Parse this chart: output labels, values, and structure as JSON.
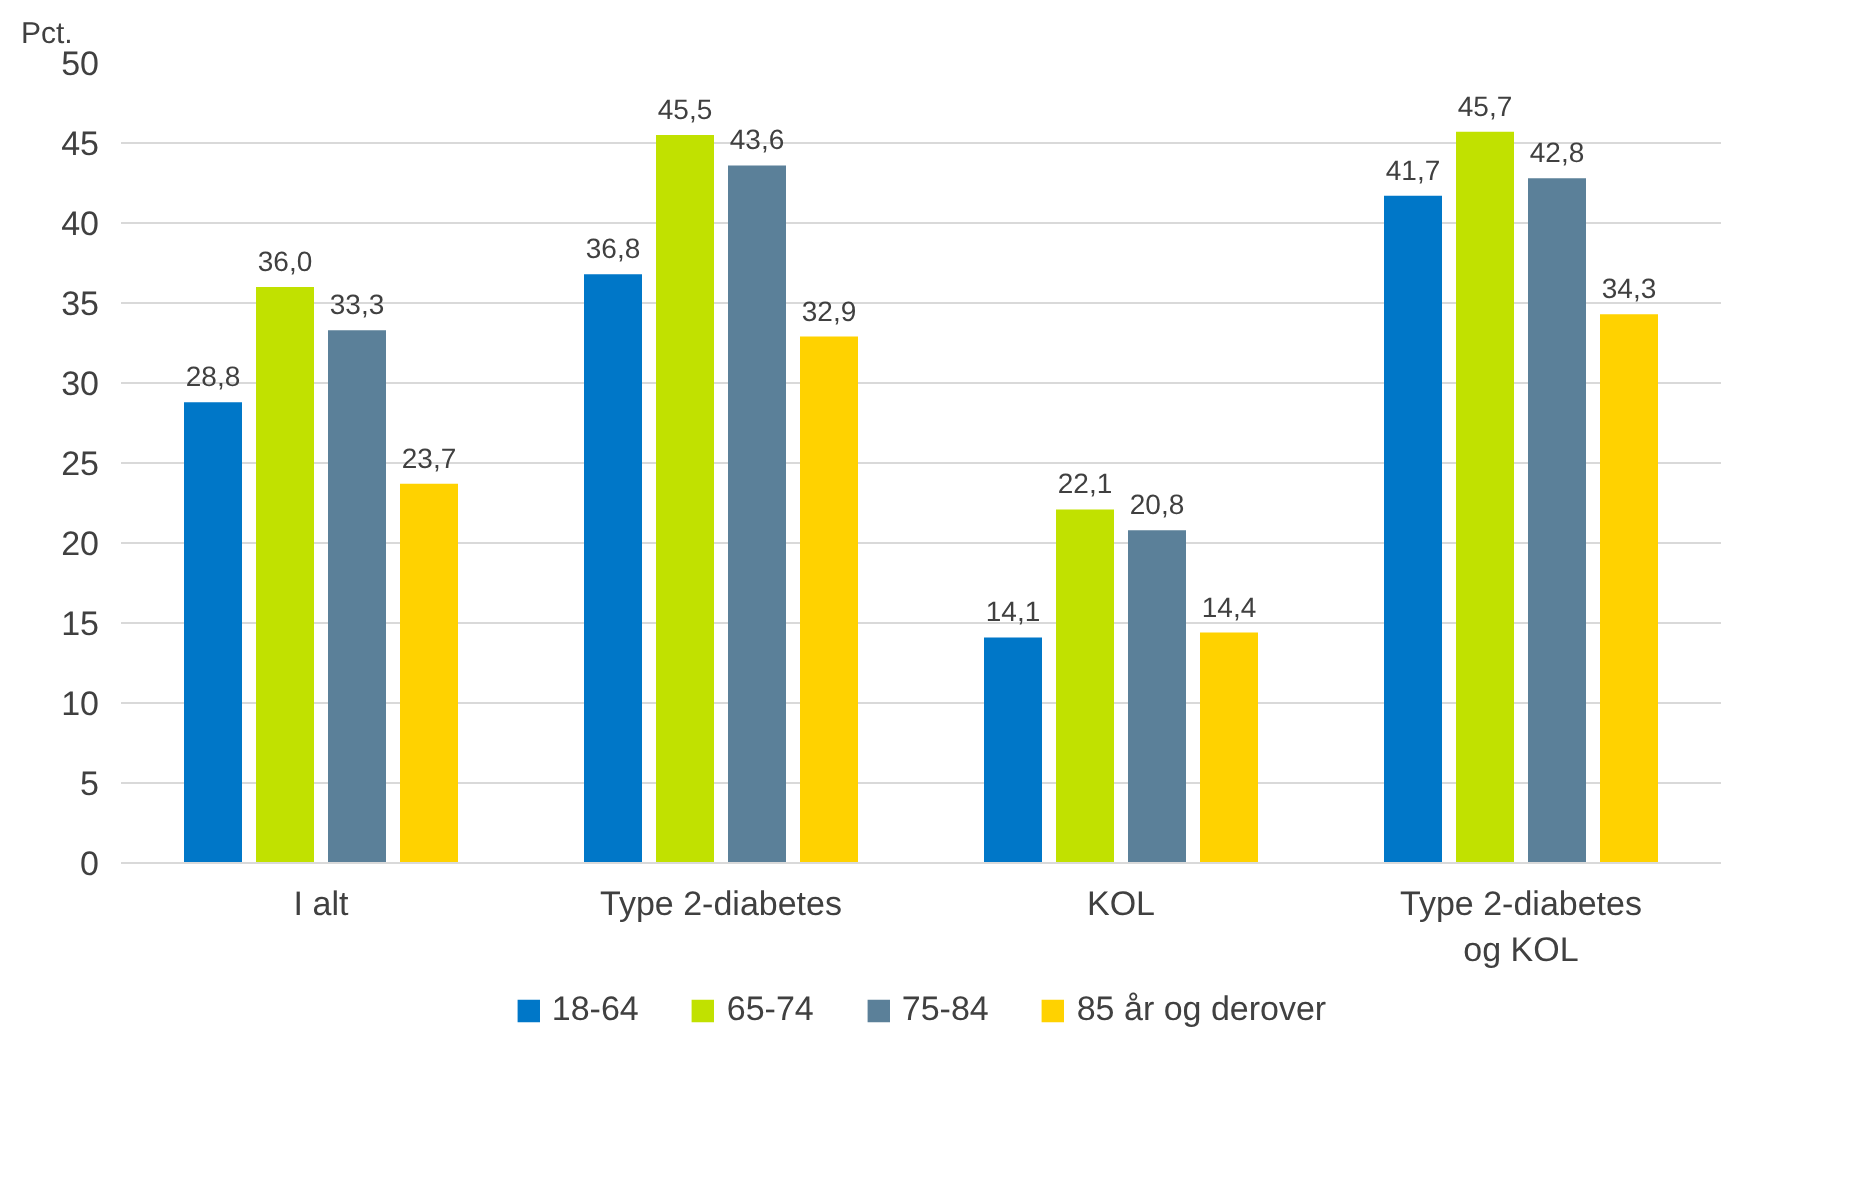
{
  "chart_data": {
    "type": "bar",
    "ylabel": "Pct.",
    "categories": [
      "I alt",
      "Type 2-diabetes",
      "KOL",
      "Type 2-diabetes og KOL"
    ],
    "series": [
      {
        "name": "18-64",
        "color": "#0077c8",
        "values": [
          28.8,
          36.8,
          14.1,
          41.7
        ],
        "value_labels": [
          "28,8",
          "36,8",
          "14,1",
          "41,7"
        ]
      },
      {
        "name": "65-74",
        "color": "#c1e100",
        "values": [
          36.0,
          45.5,
          22.1,
          45.7
        ],
        "value_labels": [
          "36,0",
          "45,5",
          "22,1",
          "45,7"
        ]
      },
      {
        "name": "75-84",
        "color": "#5b8099",
        "values": [
          33.3,
          43.6,
          20.8,
          42.8
        ],
        "value_labels": [
          "33,3",
          "43,6",
          "20,8",
          "42,8"
        ]
      },
      {
        "name": "85 år og derover",
        "color": "#ffd200",
        "values": [
          23.7,
          32.9,
          14.4,
          34.3
        ],
        "value_labels": [
          "23,7",
          "32,9",
          "14,4",
          "34,3"
        ]
      }
    ],
    "ylim": [
      0,
      50
    ],
    "yticks": [
      0,
      5,
      10,
      15,
      20,
      25,
      30,
      35,
      40,
      45,
      50
    ],
    "grid": "y",
    "legend": "bottom"
  }
}
